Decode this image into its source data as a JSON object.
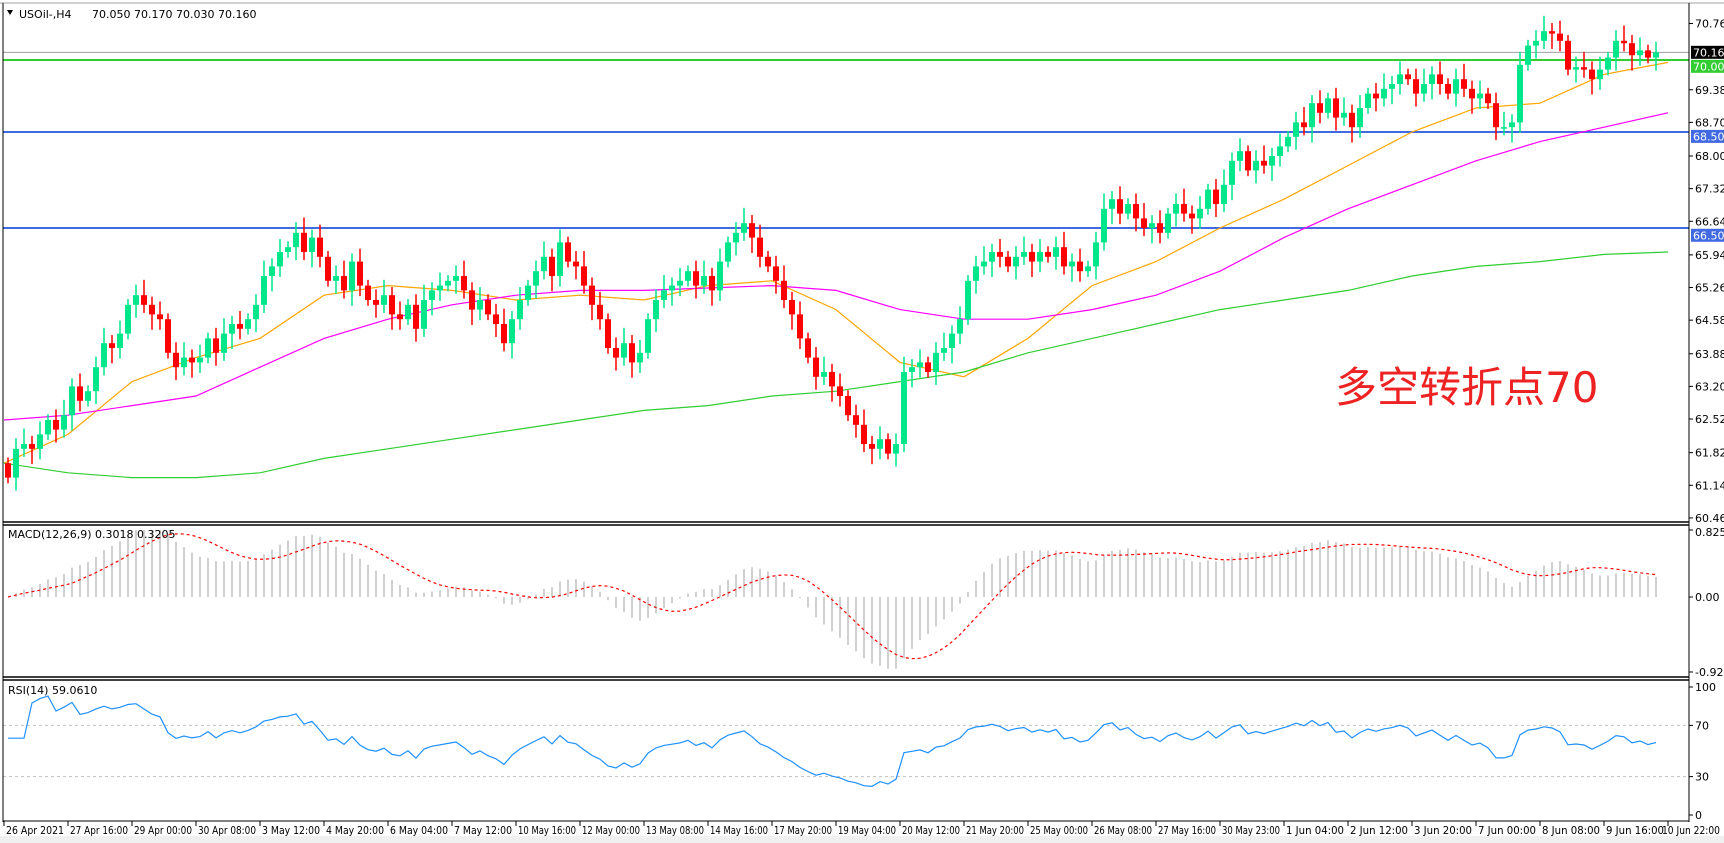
{
  "header": {
    "symbol": "USOil-,H4",
    "ohlc": "70.050 70.170 70.030 70.160"
  },
  "annotation": {
    "text": "多空转折点70",
    "color": "#ee2222"
  },
  "colors": {
    "bull": "#00e68a",
    "bear": "#ff0000",
    "ma_fast": "#ffa500",
    "ma_mid": "#ff00ff",
    "ma_slow": "#32cd32",
    "macd_hist": "#c0c0c0",
    "macd_signal": "#ff0000",
    "rsi": "#1e90ff",
    "level_green": "#32cd32",
    "level_blue": "#4169e1",
    "bid_line": "#a0a0a0"
  },
  "chart_data": [
    {
      "type": "candlestick",
      "title": "USOil-,H4",
      "price_ticks": [
        "70.760",
        "69.380",
        "68.700",
        "68.000",
        "67.320",
        "66.640",
        "65.940",
        "65.260",
        "64.580",
        "63.880",
        "63.200",
        "62.520",
        "61.820",
        "61.140",
        "60.460"
      ],
      "ylim": [
        60.46,
        70.76
      ],
      "time_labels": [
        "26 Apr 2021",
        "27 Apr 16:00",
        "29 Apr 00:00",
        "30 Apr 08:00",
        "3 May 12:00",
        "4 May 20:00",
        "6 May 04:00",
        "7 May 12:00",
        "10 May 16:00",
        "12 May 00:00",
        "13 May 08:00",
        "14 May 16:00",
        "17 May 20:00",
        "19 May 04:00",
        "20 May 12:00",
        "21 May 20:00",
        "25 May 00:00",
        "26 May 08:00",
        "27 May 16:00",
        "30 May 23:00",
        "1 Jun 04:00",
        "2 Jun 12:00",
        "3 Jun 20:00",
        "7 Jun 00:00",
        "8 Jun 08:00",
        "9 Jun 16:00",
        "10 Jun 22:00"
      ],
      "first_open": 61.6,
      "closes": [
        61.3,
        61.9,
        62.0,
        61.9,
        62.2,
        62.5,
        62.3,
        62.6,
        63.2,
        62.9,
        63.1,
        63.6,
        64.1,
        64.0,
        64.3,
        64.9,
        65.1,
        64.9,
        64.7,
        64.6,
        63.9,
        63.6,
        63.8,
        63.7,
        63.8,
        64.2,
        63.9,
        64.3,
        64.5,
        64.4,
        64.6,
        64.9,
        65.5,
        65.7,
        66.0,
        66.1,
        66.4,
        66.0,
        66.3,
        65.9,
        65.4,
        65.5,
        65.2,
        65.8,
        65.3,
        65.0,
        64.9,
        65.1,
        64.7,
        64.6,
        64.9,
        64.4,
        65.0,
        65.2,
        65.3,
        65.4,
        65.5,
        65.2,
        64.8,
        65.0,
        64.7,
        64.5,
        64.1,
        64.6,
        65.0,
        65.3,
        65.6,
        65.9,
        65.5,
        66.2,
        65.8,
        65.7,
        65.3,
        64.9,
        64.6,
        64.0,
        63.8,
        64.1,
        63.7,
        63.9,
        64.6,
        65.0,
        65.2,
        65.3,
        65.4,
        65.6,
        65.3,
        65.5,
        65.2,
        65.8,
        66.2,
        66.4,
        66.6,
        66.3,
        65.9,
        65.7,
        65.4,
        65.0,
        64.7,
        64.2,
        63.8,
        63.4,
        63.5,
        63.2,
        63.0,
        62.6,
        62.4,
        62.0,
        61.9,
        62.1,
        61.8,
        62.0,
        63.5,
        63.6,
        63.7,
        63.5,
        63.9,
        64.0,
        64.3,
        64.6,
        65.4,
        65.7,
        65.8,
        66.0,
        65.9,
        65.7,
        65.9,
        66.0,
        65.8,
        66.0,
        65.9,
        66.1,
        65.7,
        65.8,
        65.6,
        65.7,
        66.2,
        66.9,
        67.1,
        66.8,
        67.0,
        66.7,
        66.5,
        66.6,
        66.4,
        66.8,
        67.0,
        66.8,
        66.7,
        66.9,
        67.3,
        67.0,
        67.4,
        67.9,
        68.1,
        67.7,
        67.9,
        67.8,
        68.0,
        68.2,
        68.4,
        68.7,
        68.6,
        69.1,
        68.9,
        69.2,
        68.8,
        68.9,
        68.6,
        69.0,
        69.3,
        69.2,
        69.4,
        69.5,
        69.7,
        69.6,
        69.3,
        69.5,
        69.7,
        69.5,
        69.3,
        69.6,
        69.4,
        69.2,
        69.3,
        69.1,
        68.6,
        68.6,
        68.7,
        69.9,
        70.3,
        70.4,
        70.6,
        70.55,
        70.4,
        69.8,
        69.85,
        69.8,
        69.6,
        69.8,
        70.05,
        70.4,
        70.35,
        70.1,
        70.2,
        70.05,
        70.16
      ],
      "moving_averages_at_time_labels": {
        "fast": [
          61.6,
          62.2,
          63.3,
          63.8,
          64.2,
          65.1,
          65.3,
          65.2,
          65.0,
          65.1,
          65.0,
          65.3,
          65.4,
          64.8,
          63.7,
          63.4,
          64.2,
          65.3,
          65.8,
          66.5,
          67.1,
          67.8,
          68.5,
          69.0,
          69.1,
          69.7,
          69.95
        ],
        "mid": [
          62.5,
          62.6,
          62.8,
          63.0,
          63.6,
          64.2,
          64.6,
          64.9,
          65.1,
          65.2,
          65.2,
          65.25,
          65.3,
          65.2,
          64.8,
          64.6,
          64.6,
          64.8,
          65.1,
          65.6,
          66.3,
          66.9,
          67.4,
          67.9,
          68.3,
          68.6,
          68.9
        ],
        "slow": [
          61.6,
          61.4,
          61.3,
          61.3,
          61.4,
          61.7,
          61.9,
          62.1,
          62.3,
          62.5,
          62.7,
          62.8,
          63.0,
          63.1,
          63.3,
          63.5,
          63.9,
          64.2,
          64.5,
          64.8,
          65.0,
          65.2,
          65.5,
          65.7,
          65.8,
          65.95,
          66.0
        ]
      },
      "levels": [
        {
          "label": "70.000",
          "value": 70.0,
          "color": "#32cd32"
        },
        {
          "label": "68.500",
          "value": 68.5,
          "color": "#4169e1"
        },
        {
          "label": "66.500",
          "value": 66.5,
          "color": "#4169e1"
        }
      ],
      "bid": {
        "label": "70.160",
        "value": 70.16
      }
    },
    {
      "type": "bar+line",
      "title": "MACD(12,26,9) 0.3018 0.3205",
      "ticks": [
        "0.8254",
        "0.00",
        "-0.9234"
      ],
      "ylim": [
        -0.9234,
        0.8254
      ]
    },
    {
      "type": "line",
      "title": "RSI(14) 59.0610",
      "ticks": [
        "100",
        "70",
        "30",
        "0"
      ],
      "ylim": [
        0,
        100
      ],
      "levels": [
        70,
        30
      ]
    }
  ]
}
